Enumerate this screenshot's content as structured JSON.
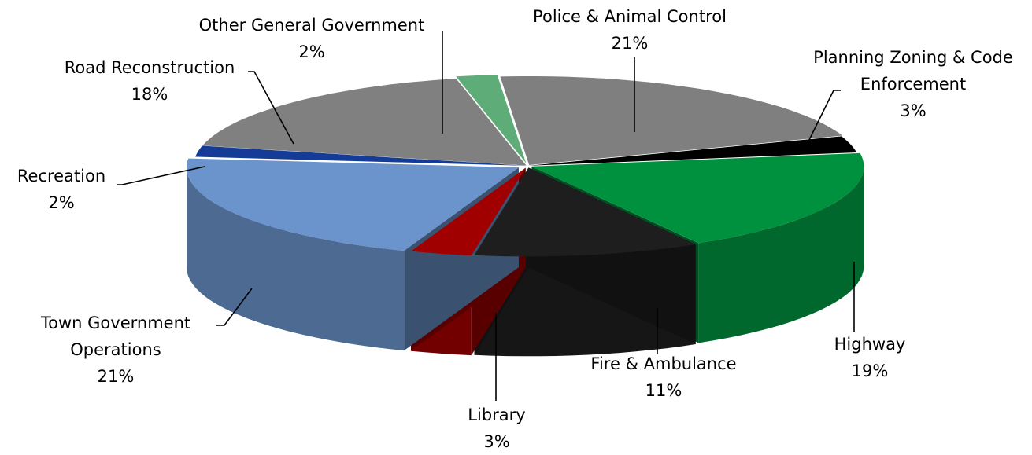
{
  "chart_data": {
    "type": "pie",
    "style": "3d-exploded-slices",
    "title": "",
    "legend": "none",
    "slices": [
      {
        "name": "Police & Animal Control",
        "label_lines": [
          "Police & Animal Control"
        ],
        "percent_label": "21%",
        "value": 21,
        "color": "#7F7F7F"
      },
      {
        "name": "Planning Zoning & Code Enforcement",
        "label_lines": [
          "Planning Zoning & Code",
          "Enforcement"
        ],
        "percent_label": "3%",
        "value": 3,
        "color": "#000000"
      },
      {
        "name": "Highway",
        "label_lines": [
          "Highway"
        ],
        "percent_label": "19%",
        "value": 19,
        "color": "#00913F"
      },
      {
        "name": "Fire & Ambulance",
        "label_lines": [
          "Fire & Ambulance"
        ],
        "percent_label": "11%",
        "value": 11,
        "color": "#1E1E1E"
      },
      {
        "name": "Library",
        "label_lines": [
          "Library"
        ],
        "percent_label": "3%",
        "value": 3,
        "color": "#A00000"
      },
      {
        "name": "Town Government Operations",
        "label_lines": [
          "Town Government",
          "Operations"
        ],
        "percent_label": "21%",
        "value": 21,
        "color": "#6B93CC"
      },
      {
        "name": "Recreation",
        "label_lines": [
          "Recreation"
        ],
        "percent_label": "2%",
        "value": 2,
        "color": "#143C96"
      },
      {
        "name": "Road Reconstruction",
        "label_lines": [
          "Road Reconstruction"
        ],
        "percent_label": "18%",
        "value": 18,
        "color": "#808080"
      },
      {
        "name": "Other General Government",
        "label_lines": [
          "Other General Government"
        ],
        "percent_label": "2%",
        "value": 2,
        "color": "#5EAD78"
      }
    ]
  }
}
